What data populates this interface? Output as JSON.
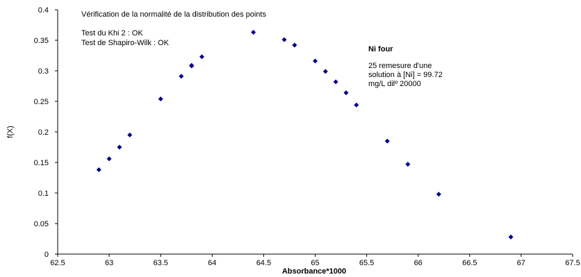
{
  "chart_data": {
    "type": "scatter",
    "xlabel": "Absorbance*1000",
    "ylabel": "f(X)",
    "xlim": [
      62.5,
      67.5
    ],
    "ylim": [
      0,
      0.4
    ],
    "x_ticks": [
      "62.5",
      "63",
      "63.5",
      "64",
      "64.5",
      "65",
      "65.5",
      "66",
      "66.5",
      "67",
      "67.5"
    ],
    "y_ticks": [
      "0",
      "0.05",
      "0.1",
      "0.15",
      "0.2",
      "0.25",
      "0.3",
      "0.35",
      "0.4"
    ],
    "grid": false,
    "marker_color": "#00008B",
    "points": [
      {
        "x": 62.9,
        "y": 0.138
      },
      {
        "x": 63.0,
        "y": 0.156
      },
      {
        "x": 63.1,
        "y": 0.175
      },
      {
        "x": 63.2,
        "y": 0.195
      },
      {
        "x": 63.5,
        "y": 0.254
      },
      {
        "x": 63.7,
        "y": 0.291
      },
      {
        "x": 63.8,
        "y": 0.309
      },
      {
        "x": 63.8,
        "y": 0.308
      },
      {
        "x": 63.9,
        "y": 0.323
      },
      {
        "x": 64.4,
        "y": 0.363
      },
      {
        "x": 64.7,
        "y": 0.351
      },
      {
        "x": 64.8,
        "y": 0.342
      },
      {
        "x": 65.0,
        "y": 0.316
      },
      {
        "x": 65.1,
        "y": 0.299
      },
      {
        "x": 65.2,
        "y": 0.282
      },
      {
        "x": 65.3,
        "y": 0.264
      },
      {
        "x": 65.4,
        "y": 0.244
      },
      {
        "x": 65.7,
        "y": 0.185
      },
      {
        "x": 65.9,
        "y": 0.147
      },
      {
        "x": 66.2,
        "y": 0.098
      },
      {
        "x": 66.9,
        "y": 0.028
      }
    ],
    "annotations": {
      "heading": "Vérification de la normalité de la distribution des points",
      "test1": "Test du Khi 2 : OK",
      "test2": "Test de Shapiro-Wilk : OK",
      "sample_title": "Ni four",
      "sample_line1": "25 remesure d'une",
      "sample_line2": "solution à [Ni] = 99.72",
      "sample_line3": "mg/L dilº 20000"
    }
  }
}
